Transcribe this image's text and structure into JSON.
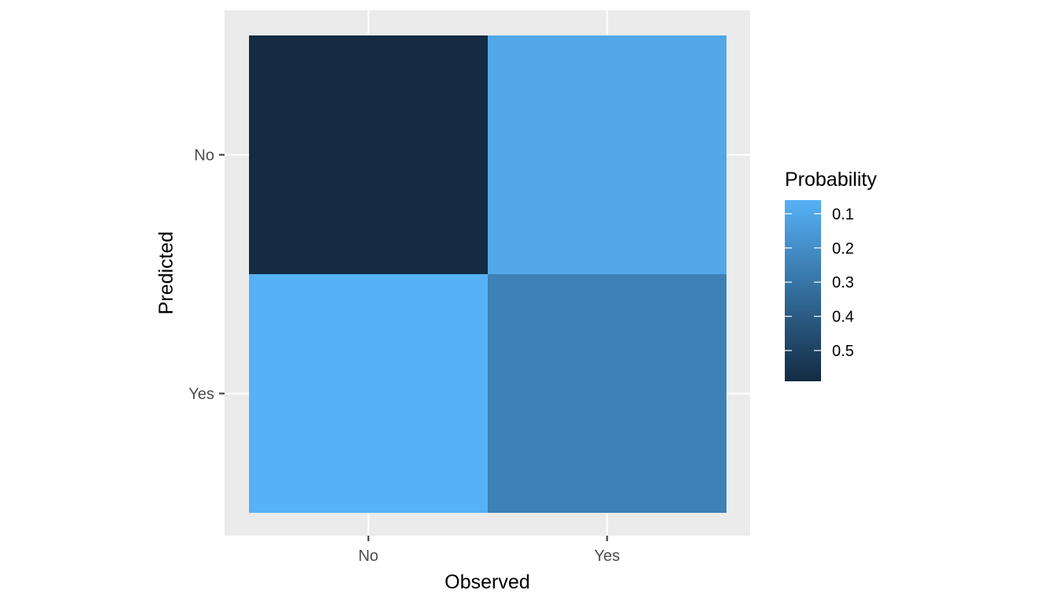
{
  "chart_data": {
    "type": "heatmap",
    "title": "",
    "xlabel": "Observed",
    "ylabel": "Predicted",
    "x_categories": [
      "No",
      "Yes"
    ],
    "y_categories": [
      "No",
      "Yes"
    ],
    "cells": [
      {
        "x": "No",
        "y": "No",
        "value": 0.59
      },
      {
        "x": "Yes",
        "y": "No",
        "value": 0.1
      },
      {
        "x": "No",
        "y": "Yes",
        "value": 0.06
      },
      {
        "x": "Yes",
        "y": "Yes",
        "value": 0.25
      }
    ],
    "legend": {
      "title": "Probability",
      "ticks": [
        0.1,
        0.2,
        0.3,
        0.4,
        0.5
      ],
      "tick_labels": [
        "0.1",
        "0.2",
        "0.3",
        "0.4",
        "0.5"
      ],
      "range": [
        0.06,
        0.59
      ],
      "position": "right"
    },
    "colors": {
      "low": "#56B1F7",
      "high": "#132B43",
      "panel_background": "#EBEBEB",
      "grid": "#FFFFFF"
    },
    "grid": true
  }
}
